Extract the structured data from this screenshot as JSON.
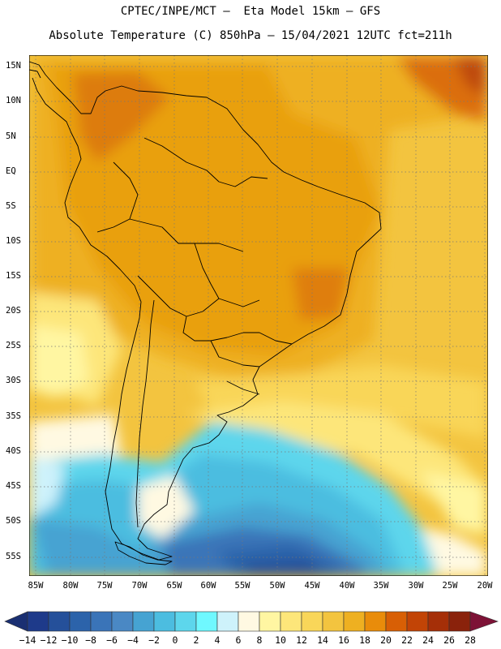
{
  "header": {
    "line1": "CPTEC/INPE/MCT –  Eta Model 15km – GFS",
    "line2": "Absolute Temperature (C) 850hPa – 15/04/2021 12UTC fct=211h"
  },
  "axes": {
    "lat_labels": [
      "15N",
      "10N",
      "5N",
      "EQ",
      "5S",
      "10S",
      "15S",
      "20S",
      "25S",
      "30S",
      "35S",
      "40S",
      "45S",
      "50S",
      "55S"
    ],
    "lon_labels": [
      "85W",
      "80W",
      "75W",
      "70W",
      "65W",
      "60W",
      "55W",
      "50W",
      "45W",
      "40W",
      "35W",
      "30W",
      "25W",
      "20W"
    ]
  },
  "colorbar": {
    "labels": [
      "-14",
      "-12",
      "-10",
      "-8",
      "-6",
      "-4",
      "-2",
      "0",
      "2",
      "4",
      "6",
      "8",
      "10",
      "12",
      "14",
      "16",
      "18",
      "20",
      "22",
      "24",
      "26",
      "28"
    ],
    "colors": [
      "#1e3a8a",
      "#25509a",
      "#2c63aa",
      "#3a74b8",
      "#4a88c4",
      "#46a3d2",
      "#4cbde0",
      "#5dd6ec",
      "#6ff8ff",
      "#cef2fb",
      "#fff9e2",
      "#fff6a2",
      "#fde67a",
      "#f9d659",
      "#f3c43f",
      "#eeb021",
      "#e98c0a",
      "#d85f05",
      "#c24406",
      "#a52f08",
      "#8a220b",
      "#6e1a12"
    ],
    "under_color": "#1a2f72",
    "over_color": "#7d1236"
  }
}
